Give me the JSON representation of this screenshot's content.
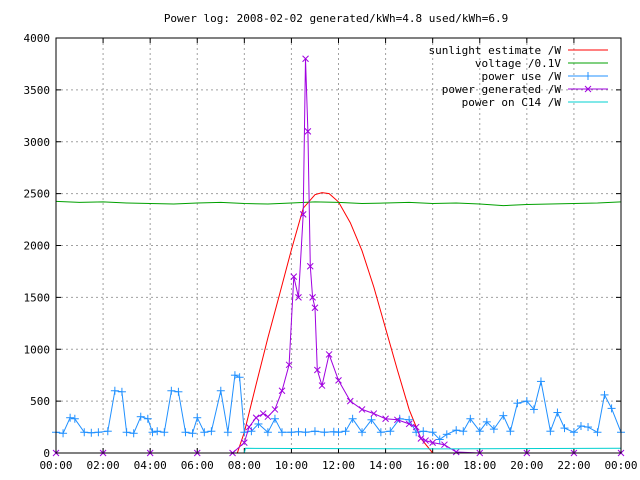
{
  "chart_data": {
    "type": "line",
    "title": "Power log: 2008-02-02 generated/kWh=4.8 used/kWh=6.9",
    "xlabel": "",
    "ylabel": "",
    "x_ticks": [
      "00:00",
      "02:00",
      "04:00",
      "06:00",
      "08:00",
      "10:00",
      "12:00",
      "14:00",
      "16:00",
      "18:00",
      "20:00",
      "22:00",
      "00:00"
    ],
    "xlim_hours": [
      0,
      24
    ],
    "ylim": [
      0,
      4000
    ],
    "y_ticks": [
      0,
      500,
      1000,
      1500,
      2000,
      2500,
      3000,
      3500,
      4000
    ],
    "grid": true,
    "legend_position": "top-right",
    "series": [
      {
        "name": "sunlight estimate /W",
        "color": "#ff0000",
        "marker": "none",
        "x": [
          0,
          7.7,
          8.0,
          8.5,
          9.0,
          9.5,
          10.0,
          10.5,
          11.0,
          11.3,
          11.6,
          12.0,
          12.5,
          13.0,
          13.5,
          14.0,
          14.5,
          15.0,
          15.5,
          16.0,
          24
        ],
        "y": [
          0,
          0,
          200,
          660,
          1110,
          1530,
          1960,
          2360,
          2490,
          2510,
          2500,
          2420,
          2220,
          1950,
          1600,
          1200,
          800,
          420,
          140,
          0,
          0
        ]
      },
      {
        "name": "voltage /0.1V",
        "color": "#00a000",
        "marker": "none",
        "x": [
          0,
          1,
          2,
          3,
          4,
          5,
          6,
          7,
          8,
          9,
          10,
          11,
          12,
          13,
          14,
          15,
          16,
          17,
          18,
          19,
          20,
          21,
          22,
          23,
          24
        ],
        "y": [
          2425,
          2415,
          2420,
          2410,
          2405,
          2400,
          2410,
          2415,
          2405,
          2400,
          2410,
          2420,
          2415,
          2405,
          2410,
          2415,
          2405,
          2410,
          2400,
          2385,
          2395,
          2400,
          2405,
          2410,
          2420
        ]
      },
      {
        "name": "power use /W",
        "color": "#2090ff",
        "marker": "+",
        "x": [
          0,
          0.3,
          0.6,
          0.8,
          1.2,
          1.5,
          1.8,
          2.2,
          2.5,
          2.8,
          3.0,
          3.3,
          3.6,
          3.9,
          4.1,
          4.3,
          4.6,
          4.9,
          5.2,
          5.5,
          5.8,
          6.0,
          6.3,
          6.6,
          7.0,
          7.3,
          7.6,
          7.8,
          8.0,
          8.3,
          8.6,
          9.0,
          9.3,
          9.6,
          10.0,
          10.3,
          10.6,
          11.0,
          11.4,
          11.8,
          12.0,
          12.3,
          12.6,
          13.0,
          13.4,
          13.8,
          14.2,
          14.6,
          15.0,
          15.3,
          15.6,
          16.0,
          16.3,
          16.6,
          17.0,
          17.3,
          17.6,
          18.0,
          18.3,
          18.6,
          19.0,
          19.3,
          19.6,
          20.0,
          20.3,
          20.6,
          21.0,
          21.3,
          21.6,
          22.0,
          22.3,
          22.6,
          23.0,
          23.3,
          23.6,
          24.0
        ],
        "y": [
          200,
          190,
          340,
          330,
          200,
          195,
          200,
          210,
          600,
          590,
          200,
          190,
          350,
          330,
          200,
          210,
          200,
          600,
          590,
          200,
          190,
          340,
          200,
          210,
          600,
          200,
          750,
          730,
          200,
          210,
          280,
          200,
          330,
          200,
          200,
          205,
          200,
          210,
          200,
          205,
          200,
          210,
          330,
          200,
          320,
          200,
          210,
          330,
          320,
          200,
          210,
          200,
          130,
          180,
          220,
          210,
          330,
          210,
          300,
          230,
          360,
          210,
          480,
          500,
          420,
          690,
          210,
          390,
          240,
          200,
          260,
          250,
          200,
          560,
          430,
          200
        ]
      },
      {
        "name": "power generated /W",
        "color": "#a000e0",
        "marker": "x",
        "x": [
          0,
          2,
          4,
          6,
          7.5,
          8.0,
          8.2,
          8.5,
          8.8,
          9.0,
          9.3,
          9.6,
          9.9,
          10.1,
          10.3,
          10.5,
          10.6,
          10.7,
          10.8,
          10.9,
          11.0,
          11.1,
          11.3,
          11.6,
          12.0,
          12.5,
          13.0,
          13.5,
          14.0,
          14.5,
          15.0,
          15.3,
          15.5,
          15.7,
          16.0,
          16.5,
          17.0,
          18.0,
          20.0,
          22.0,
          24.0
        ],
        "y": [
          0,
          0,
          0,
          0,
          0,
          100,
          250,
          340,
          380,
          350,
          420,
          600,
          850,
          1700,
          1500,
          2300,
          3800,
          3100,
          1800,
          1500,
          1400,
          800,
          650,
          950,
          700,
          500,
          420,
          380,
          330,
          320,
          280,
          250,
          140,
          120,
          100,
          80,
          10,
          0,
          0,
          0,
          0
        ]
      },
      {
        "name": "power on C14 /W",
        "color": "#00d0d0",
        "marker": "none",
        "x": [
          0,
          8.0,
          8.05,
          16.5,
          24
        ],
        "y": [
          0,
          0,
          45,
          40,
          45
        ]
      }
    ]
  }
}
